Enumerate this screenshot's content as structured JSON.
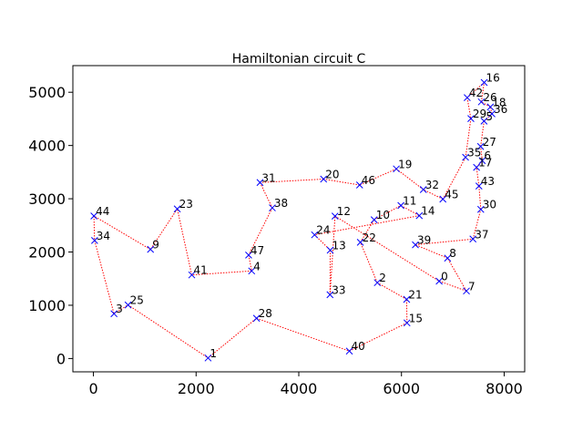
{
  "chart_data": {
    "type": "scatter",
    "title": "Hamiltonian circuit C",
    "xlabel": "",
    "ylabel": "",
    "xlim": [
      -400,
      8400
    ],
    "ylim": [
      -250,
      5500
    ],
    "xticks": [
      0,
      2000,
      4000,
      6000,
      8000
    ],
    "xtick_labels": [
      "0",
      "2000",
      "4000",
      "6000",
      "8000"
    ],
    "yticks": [
      0,
      1000,
      2000,
      3000,
      4000,
      5000
    ],
    "ytick_labels": [
      "0",
      "1000",
      "2000",
      "3000",
      "4000",
      "5000"
    ],
    "grid": false,
    "colors": {
      "marker": "#0000ff",
      "edge": "#ff0000",
      "axes": "#000000",
      "text": "#000000"
    },
    "points": [
      {
        "id": "0",
        "x": 6734,
        "y": 1453
      },
      {
        "id": "1",
        "x": 2233,
        "y": 10
      },
      {
        "id": "2",
        "x": 5530,
        "y": 1424
      },
      {
        "id": "3",
        "x": 401,
        "y": 841
      },
      {
        "id": "4",
        "x": 3082,
        "y": 1644
      },
      {
        "id": "5",
        "x": 7608,
        "y": 4458
      },
      {
        "id": "6",
        "x": 7573,
        "y": 3716
      },
      {
        "id": "7",
        "x": 7265,
        "y": 1268
      },
      {
        "id": "8",
        "x": 6898,
        "y": 1885
      },
      {
        "id": "9",
        "x": 1112,
        "y": 2049
      },
      {
        "id": "10",
        "x": 5468,
        "y": 2606
      },
      {
        "id": "11",
        "x": 5989,
        "y": 2873
      },
      {
        "id": "12",
        "x": 4706,
        "y": 2674
      },
      {
        "id": "13",
        "x": 4612,
        "y": 2035
      },
      {
        "id": "14",
        "x": 6347,
        "y": 2683
      },
      {
        "id": "15",
        "x": 6107,
        "y": 669
      },
      {
        "id": "16",
        "x": 7611,
        "y": 5184
      },
      {
        "id": "17",
        "x": 7462,
        "y": 3590
      },
      {
        "id": "18",
        "x": 7732,
        "y": 4723
      },
      {
        "id": "19",
        "x": 5900,
        "y": 3561
      },
      {
        "id": "20",
        "x": 4483,
        "y": 3369
      },
      {
        "id": "21",
        "x": 6101,
        "y": 1110
      },
      {
        "id": "22",
        "x": 5199,
        "y": 2182
      },
      {
        "id": "23",
        "x": 1633,
        "y": 2809
      },
      {
        "id": "24",
        "x": 4307,
        "y": 2322
      },
      {
        "id": "25",
        "x": 675,
        "y": 1006
      },
      {
        "id": "26",
        "x": 7555,
        "y": 4819
      },
      {
        "id": "27",
        "x": 7541,
        "y": 3981
      },
      {
        "id": "28",
        "x": 3177,
        "y": 756
      },
      {
        "id": "29",
        "x": 7352,
        "y": 4506
      },
      {
        "id": "30",
        "x": 7545,
        "y": 2801
      },
      {
        "id": "31",
        "x": 3245,
        "y": 3305
      },
      {
        "id": "32",
        "x": 6426,
        "y": 3173
      },
      {
        "id": "33",
        "x": 4608,
        "y": 1198
      },
      {
        "id": "34",
        "x": 23,
        "y": 2216
      },
      {
        "id": "35",
        "x": 7248,
        "y": 3779
      },
      {
        "id": "36",
        "x": 7762,
        "y": 4595
      },
      {
        "id": "37",
        "x": 7392,
        "y": 2244
      },
      {
        "id": "38",
        "x": 3484,
        "y": 2829
      },
      {
        "id": "39",
        "x": 6271,
        "y": 2135
      },
      {
        "id": "40",
        "x": 4985,
        "y": 140
      },
      {
        "id": "41",
        "x": 1916,
        "y": 1569
      },
      {
        "id": "42",
        "x": 7280,
        "y": 4899
      },
      {
        "id": "43",
        "x": 7509,
        "y": 3239
      },
      {
        "id": "44",
        "x": 10,
        "y": 2676
      },
      {
        "id": "45",
        "x": 6807,
        "y": 2993
      },
      {
        "id": "46",
        "x": 5185,
        "y": 3258
      },
      {
        "id": "47",
        "x": 3023,
        "y": 1942
      }
    ],
    "tour": [
      "0",
      "7",
      "8",
      "39",
      "37",
      "30",
      "43",
      "17",
      "6",
      "27",
      "5",
      "36",
      "18",
      "26",
      "16",
      "42",
      "29",
      "35",
      "45",
      "32",
      "19",
      "46",
      "20",
      "31",
      "38",
      "47",
      "4",
      "41",
      "23",
      "9",
      "44",
      "34",
      "3",
      "25",
      "1",
      "28",
      "40",
      "15",
      "21",
      "2",
      "22",
      "10",
      "11",
      "14",
      "24",
      "13",
      "33",
      "12",
      "0"
    ]
  }
}
